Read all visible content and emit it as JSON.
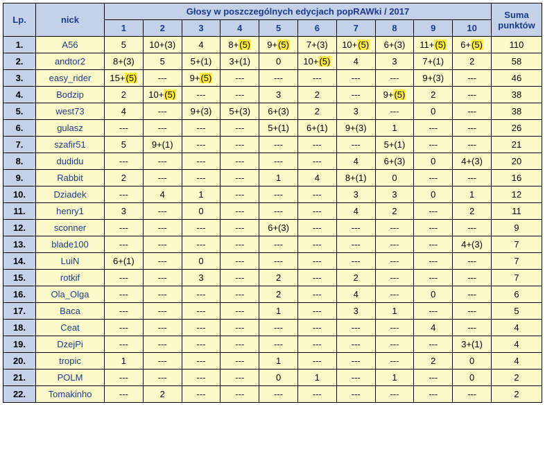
{
  "headers": {
    "lp": "Lp.",
    "nick": "nick",
    "editions_title": "Głosy w poszczególnych edycjach popRAWki / 2017",
    "sum": "Suma punktów",
    "cols": [
      "1",
      "2",
      "3",
      "4",
      "5",
      "6",
      "7",
      "8",
      "9",
      "10"
    ]
  },
  "rows": [
    {
      "lp": "1.",
      "nick": "A56",
      "cells": [
        {
          "t": "5"
        },
        {
          "t": "10+(3)"
        },
        {
          "t": "4"
        },
        {
          "p": "8+",
          "h": "(5)"
        },
        {
          "p": "9+",
          "h": "(5)"
        },
        {
          "t": "7+(3)"
        },
        {
          "p": "10+",
          "h": "(5)"
        },
        {
          "t": "6+(3)"
        },
        {
          "p": "11+",
          "h": "(5)"
        },
        {
          "p": "6+",
          "h": "(5)"
        }
      ],
      "sum": "110"
    },
    {
      "lp": "2.",
      "nick": "andtor2",
      "cells": [
        {
          "t": "8+(3)"
        },
        {
          "t": "5"
        },
        {
          "t": "5+(1)"
        },
        {
          "t": "3+(1)"
        },
        {
          "t": "0"
        },
        {
          "p": "10+",
          "h": "(5)"
        },
        {
          "t": "4"
        },
        {
          "t": "3"
        },
        {
          "t": "7+(1)"
        },
        {
          "t": "2"
        }
      ],
      "sum": "58"
    },
    {
      "lp": "3.",
      "nick": "easy_rider",
      "cells": [
        {
          "p": "15+",
          "h": "(5)"
        },
        {
          "t": "---"
        },
        {
          "p": "9+",
          "h": "(5)"
        },
        {
          "t": "---"
        },
        {
          "t": "---"
        },
        {
          "t": "---"
        },
        {
          "t": "---"
        },
        {
          "t": "---"
        },
        {
          "t": "9+(3)"
        },
        {
          "t": "---"
        }
      ],
      "sum": "46"
    },
    {
      "lp": "4.",
      "nick": "Bodzip",
      "cells": [
        {
          "t": "2"
        },
        {
          "p": "10+",
          "h": "(5)"
        },
        {
          "t": "---"
        },
        {
          "t": "---"
        },
        {
          "t": "3"
        },
        {
          "t": "2"
        },
        {
          "t": "---"
        },
        {
          "p": "9+",
          "h": "(5)"
        },
        {
          "t": "2"
        },
        {
          "t": "---"
        }
      ],
      "sum": "38"
    },
    {
      "lp": "5.",
      "nick": "west73",
      "cells": [
        {
          "t": "4"
        },
        {
          "t": "---"
        },
        {
          "t": "9+(3)"
        },
        {
          "t": "5+(3)"
        },
        {
          "t": "6+(3)"
        },
        {
          "t": "2"
        },
        {
          "t": "3"
        },
        {
          "t": "---"
        },
        {
          "t": "0"
        },
        {
          "t": "---"
        }
      ],
      "sum": "38"
    },
    {
      "lp": "6.",
      "nick": "gulasz",
      "cells": [
        {
          "t": "---"
        },
        {
          "t": "---"
        },
        {
          "t": "---"
        },
        {
          "t": "---"
        },
        {
          "t": "5+(1)"
        },
        {
          "t": "6+(1)"
        },
        {
          "t": "9+(3)"
        },
        {
          "t": "1"
        },
        {
          "t": "---"
        },
        {
          "t": "---"
        }
      ],
      "sum": "26"
    },
    {
      "lp": "7.",
      "nick": "szafir51",
      "cells": [
        {
          "t": "5"
        },
        {
          "t": "9+(1)"
        },
        {
          "t": "---"
        },
        {
          "t": "---"
        },
        {
          "t": "---"
        },
        {
          "t": "---"
        },
        {
          "t": "---"
        },
        {
          "t": "5+(1)"
        },
        {
          "t": "---"
        },
        {
          "t": "---"
        }
      ],
      "sum": "21"
    },
    {
      "lp": "8.",
      "nick": "dudidu",
      "cells": [
        {
          "t": "---"
        },
        {
          "t": "---"
        },
        {
          "t": "---"
        },
        {
          "t": "---"
        },
        {
          "t": "---"
        },
        {
          "t": "---"
        },
        {
          "t": "4"
        },
        {
          "t": "6+(3)"
        },
        {
          "t": "0"
        },
        {
          "t": "4+(3)"
        }
      ],
      "sum": "20"
    },
    {
      "lp": "9.",
      "nick": "Rabbit",
      "cells": [
        {
          "t": "2"
        },
        {
          "t": "---"
        },
        {
          "t": "---"
        },
        {
          "t": "---"
        },
        {
          "t": "1"
        },
        {
          "t": "4"
        },
        {
          "t": "8+(1)"
        },
        {
          "t": "0"
        },
        {
          "t": "---"
        },
        {
          "t": "---"
        }
      ],
      "sum": "16"
    },
    {
      "lp": "10.",
      "nick": "Dziadek",
      "cells": [
        {
          "t": "---"
        },
        {
          "t": "4"
        },
        {
          "t": "1"
        },
        {
          "t": "---"
        },
        {
          "t": "---"
        },
        {
          "t": "---"
        },
        {
          "t": "3"
        },
        {
          "t": "3"
        },
        {
          "t": "0"
        },
        {
          "t": "1"
        }
      ],
      "sum": "12"
    },
    {
      "lp": "11.",
      "nick": "henry1",
      "cells": [
        {
          "t": "3"
        },
        {
          "t": "---"
        },
        {
          "t": "0"
        },
        {
          "t": "---"
        },
        {
          "t": "---"
        },
        {
          "t": "---"
        },
        {
          "t": "4"
        },
        {
          "t": "2"
        },
        {
          "t": "---"
        },
        {
          "t": "2"
        }
      ],
      "sum": "11"
    },
    {
      "lp": "12.",
      "nick": "sconner",
      "cells": [
        {
          "t": "---"
        },
        {
          "t": "---"
        },
        {
          "t": "---"
        },
        {
          "t": "---"
        },
        {
          "t": "6+(3)"
        },
        {
          "t": "---"
        },
        {
          "t": "---"
        },
        {
          "t": "---"
        },
        {
          "t": "---"
        },
        {
          "t": "---"
        }
      ],
      "sum": "9"
    },
    {
      "lp": "13.",
      "nick": "blade100",
      "cells": [
        {
          "t": "---"
        },
        {
          "t": "---"
        },
        {
          "t": "---"
        },
        {
          "t": "---"
        },
        {
          "t": "---"
        },
        {
          "t": "---"
        },
        {
          "t": "---"
        },
        {
          "t": "---"
        },
        {
          "t": "---"
        },
        {
          "t": "4+(3)"
        }
      ],
      "sum": "7"
    },
    {
      "lp": "14.",
      "nick": "LuiN",
      "cells": [
        {
          "t": "6+(1)"
        },
        {
          "t": "---"
        },
        {
          "t": "0"
        },
        {
          "t": "---"
        },
        {
          "t": "---"
        },
        {
          "t": "---"
        },
        {
          "t": "---"
        },
        {
          "t": "---"
        },
        {
          "t": "---"
        },
        {
          "t": "---"
        }
      ],
      "sum": "7"
    },
    {
      "lp": "15.",
      "nick": "rotkif",
      "cells": [
        {
          "t": "---"
        },
        {
          "t": "---"
        },
        {
          "t": "3"
        },
        {
          "t": "---"
        },
        {
          "t": "2"
        },
        {
          "t": "---"
        },
        {
          "t": "2"
        },
        {
          "t": "---"
        },
        {
          "t": "---"
        },
        {
          "t": "---"
        }
      ],
      "sum": "7"
    },
    {
      "lp": "16.",
      "nick": "Ola_Olga",
      "cells": [
        {
          "t": "---"
        },
        {
          "t": "---"
        },
        {
          "t": "---"
        },
        {
          "t": "---"
        },
        {
          "t": "2"
        },
        {
          "t": "---"
        },
        {
          "t": "4"
        },
        {
          "t": "---"
        },
        {
          "t": "0"
        },
        {
          "t": "---"
        }
      ],
      "sum": "6"
    },
    {
      "lp": "17.",
      "nick": "Baca",
      "cells": [
        {
          "t": "---"
        },
        {
          "t": "---"
        },
        {
          "t": "---"
        },
        {
          "t": "---"
        },
        {
          "t": "1"
        },
        {
          "t": "---"
        },
        {
          "t": "3"
        },
        {
          "t": "1"
        },
        {
          "t": "---"
        },
        {
          "t": "---"
        }
      ],
      "sum": "5"
    },
    {
      "lp": "18.",
      "nick": "Ceat",
      "cells": [
        {
          "t": "---"
        },
        {
          "t": "---"
        },
        {
          "t": "---"
        },
        {
          "t": "---"
        },
        {
          "t": "---"
        },
        {
          "t": "---"
        },
        {
          "t": "---"
        },
        {
          "t": "---"
        },
        {
          "t": "4"
        },
        {
          "t": "---"
        }
      ],
      "sum": "4"
    },
    {
      "lp": "19.",
      "nick": "DzejPi",
      "cells": [
        {
          "t": "---"
        },
        {
          "t": "---"
        },
        {
          "t": "---"
        },
        {
          "t": "---"
        },
        {
          "t": "---"
        },
        {
          "t": "---"
        },
        {
          "t": "---"
        },
        {
          "t": "---"
        },
        {
          "t": "---"
        },
        {
          "t": "3+(1)"
        }
      ],
      "sum": "4"
    },
    {
      "lp": "20.",
      "nick": "tropic",
      "cells": [
        {
          "t": "1"
        },
        {
          "t": "---"
        },
        {
          "t": "---"
        },
        {
          "t": "---"
        },
        {
          "t": "1"
        },
        {
          "t": "---"
        },
        {
          "t": "---"
        },
        {
          "t": "---"
        },
        {
          "t": "2"
        },
        {
          "t": "0"
        }
      ],
      "sum": "4"
    },
    {
      "lp": "21.",
      "nick": "POLM",
      "cells": [
        {
          "t": "---"
        },
        {
          "t": "---"
        },
        {
          "t": "---"
        },
        {
          "t": "---"
        },
        {
          "t": "0"
        },
        {
          "t": "1"
        },
        {
          "t": "---"
        },
        {
          "t": "1"
        },
        {
          "t": "---"
        },
        {
          "t": "0"
        }
      ],
      "sum": "2"
    },
    {
      "lp": "22.",
      "nick": "Tomakinho",
      "cells": [
        {
          "t": "---"
        },
        {
          "t": "2"
        },
        {
          "t": "---"
        },
        {
          "t": "---"
        },
        {
          "t": "---"
        },
        {
          "t": "---"
        },
        {
          "t": "---"
        },
        {
          "t": "---"
        },
        {
          "t": "---"
        },
        {
          "t": "---"
        }
      ],
      "sum": "2"
    }
  ]
}
